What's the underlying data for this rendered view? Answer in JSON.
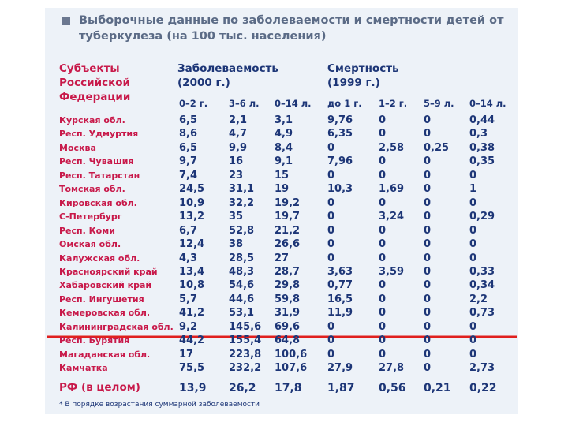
{
  "header": {
    "title": "Выборочные данные по заболеваемости и смертности детей от туберкулеза (на 100 тыс. населения)"
  },
  "table": {
    "region_header": "Субъекты Российской Федерации",
    "groups": [
      "Заболеваемость (2000 г.)",
      "Смертность (1999 г.)"
    ],
    "columns": [
      "0–2 г.",
      "3–6 л.",
      "0–14 л.",
      "до 1 г.",
      "1–2 г.",
      "5–9 л.",
      "0–14 л."
    ],
    "rows": [
      [
        "Курская обл.",
        "6,5",
        "2,1",
        "3,1",
        "9,76",
        "0",
        "0",
        "0,44"
      ],
      [
        "Респ. Удмуртия",
        "8,6",
        "4,7",
        "4,9",
        "6,35",
        "0",
        "0",
        "0,3"
      ],
      [
        "Москва",
        "6,5",
        "9,9",
        "8,4",
        "0",
        "2,58",
        "0,25",
        "0,38"
      ],
      [
        "Респ. Чувашия",
        "9,7",
        "16",
        "9,1",
        "7,96",
        "0",
        "0",
        "0,35"
      ],
      [
        "Респ. Татарстан",
        "7,4",
        "23",
        "15",
        "0",
        "0",
        "0",
        "0"
      ],
      [
        "Томская обл.",
        "24,5",
        "31,1",
        "19",
        "10,3",
        "1,69",
        "0",
        "1"
      ],
      [
        "Кировская обл.",
        "10,9",
        "32,2",
        "19,2",
        "0",
        "0",
        "0",
        "0"
      ],
      [
        "С-Петербург",
        "13,2",
        "35",
        "19,7",
        "0",
        "3,24",
        "0",
        "0,29"
      ],
      [
        "Респ. Коми",
        "6,7",
        "52,8",
        "21,2",
        "0",
        "0",
        "0",
        "0"
      ],
      [
        "Омская обл.",
        "12,4",
        "38",
        "26,6",
        "0",
        "0",
        "0",
        "0"
      ],
      [
        "Калужская обл.",
        "4,3",
        "28,5",
        "27",
        "0",
        "0",
        "0",
        "0"
      ],
      [
        "Красноярский край",
        "13,4",
        "48,3",
        "28,7",
        "3,63",
        "3,59",
        "0",
        "0,33"
      ],
      [
        "Хабаровский край",
        "10,8",
        "54,6",
        "29,8",
        "0,77",
        "0",
        "0",
        "0,34"
      ],
      [
        "Респ. Ингушетия",
        "5,7",
        "44,6",
        "59,8",
        "16,5",
        "0",
        "0",
        "2,2"
      ],
      [
        "Кемеровская обл.",
        "41,2",
        "53,1",
        "31,9",
        "11,9",
        "0",
        "0",
        "0,73"
      ],
      [
        "Калининградская обл.",
        "9,2",
        "145,6",
        "69,6",
        "0",
        "0",
        "0",
        "0"
      ],
      [
        "Респ. Бурятия",
        "44,2",
        "155,4",
        "64,8",
        "0",
        "0",
        "0",
        "0"
      ],
      [
        "Магаданская обл.",
        "17",
        "223,8",
        "100,6",
        "0",
        "0",
        "0",
        "0"
      ],
      [
        "Камчатка",
        "75,5",
        "232,2",
        "107,6",
        "27,9",
        "27,8",
        "0",
        "2,73"
      ]
    ],
    "total": [
      "РФ (в целом)",
      "13,9",
      "26,2",
      "17,8",
      "1,87",
      "0,56",
      "0,21",
      "0,22"
    ]
  },
  "footnote": "* В порядке возрастания суммарной заболеваемости"
}
